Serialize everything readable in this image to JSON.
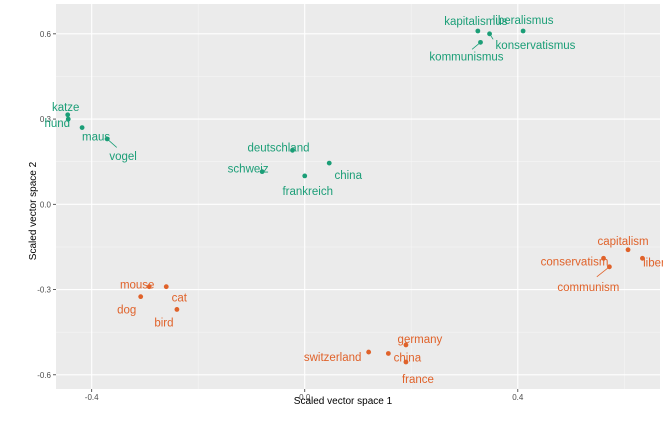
{
  "colors": {
    "panel": "#ebebeb",
    "grid_major": "#ffffff",
    "grid_minor": "#f5f5f5",
    "german": "#1b9e77",
    "english": "#e0622a"
  },
  "chart_data": {
    "type": "scatter",
    "title": "",
    "xlabel": "Scaled vector space 1",
    "ylabel": "Scaled vector space 2",
    "xlim": [
      -0.467,
      0.667
    ],
    "ylim": [
      -0.65,
      0.705
    ],
    "x_ticks": [
      -0.4,
      0.0,
      0.4
    ],
    "x_tick_labels": [
      "-0.4",
      "0.0",
      "0.4"
    ],
    "y_ticks": [
      -0.6,
      -0.3,
      0.0,
      0.3,
      0.6
    ],
    "y_tick_labels": [
      "-0.6",
      "-0.3",
      "0.0",
      "0.3",
      "0.6"
    ],
    "grid": true,
    "legend": "none",
    "series": [
      {
        "color_key": "german",
        "points": [
          {
            "label": "kapitalismus",
            "x": 0.325,
            "y": 0.61
          },
          {
            "label": "liberalismus",
            "x": 0.41,
            "y": 0.61
          },
          {
            "label": "konservatismus",
            "x": 0.347,
            "y": 0.6
          },
          {
            "label": "kommunismus",
            "x": 0.33,
            "y": 0.57
          },
          {
            "label": "katze",
            "x": -0.445,
            "y": 0.315
          },
          {
            "label": "hund",
            "x": -0.444,
            "y": 0.3
          },
          {
            "label": "maus",
            "x": -0.418,
            "y": 0.27
          },
          {
            "label": "vogel",
            "x": -0.371,
            "y": 0.23
          },
          {
            "label": "deutschland",
            "x": -0.023,
            "y": 0.19
          },
          {
            "label": "schweiz",
            "x": -0.08,
            "y": 0.115
          },
          {
            "label": "china",
            "x": 0.046,
            "y": 0.145
          },
          {
            "label": "frankreich",
            "x": 0.0,
            "y": 0.1
          }
        ]
      },
      {
        "color_key": "english",
        "points": [
          {
            "label": "capitalism",
            "x": 0.607,
            "y": -0.16
          },
          {
            "label": "conservatism",
            "x": 0.561,
            "y": -0.19
          },
          {
            "label": "liberalism",
            "x": 0.634,
            "y": -0.19
          },
          {
            "label": "communism",
            "x": 0.572,
            "y": -0.22
          },
          {
            "label": "mouse",
            "x": -0.292,
            "y": -0.29
          },
          {
            "label": "cat",
            "x": -0.26,
            "y": -0.29
          },
          {
            "label": "dog",
            "x": -0.308,
            "y": -0.325
          },
          {
            "label": "bird",
            "x": -0.24,
            "y": -0.37
          },
          {
            "label": "germany",
            "x": 0.19,
            "y": -0.495
          },
          {
            "label": "switzerland",
            "x": 0.12,
            "y": -0.52
          },
          {
            "label": "china",
            "x": 0.157,
            "y": -0.525
          },
          {
            "label": "france",
            "x": 0.19,
            "y": -0.555
          }
        ]
      }
    ]
  }
}
